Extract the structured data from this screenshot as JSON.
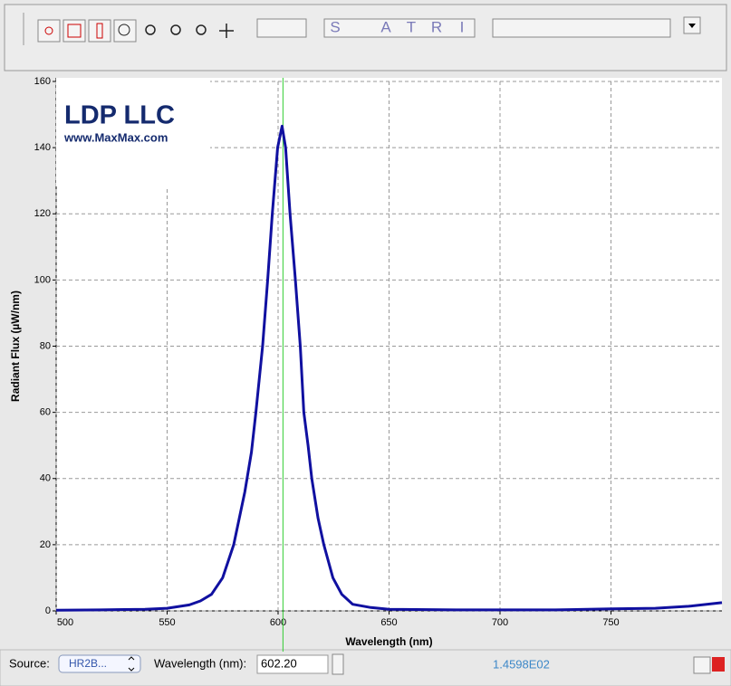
{
  "toolbar": {
    "letters": [
      "S",
      "A",
      "T",
      "R",
      "I"
    ]
  },
  "logo": {
    "title": "LDP LLC",
    "url": "www.MaxMax.com"
  },
  "chart_data": {
    "type": "line",
    "xlabel": "Wavelength (nm)",
    "ylabel": "Radiant Flux (µW/nm)",
    "x": [
      500,
      520,
      540,
      550,
      560,
      565,
      570,
      575,
      580,
      585,
      588,
      590,
      593,
      595.3,
      597.4,
      599.8,
      601.8,
      603.4,
      605.4,
      607.8,
      610,
      611.6,
      613.5,
      615.2,
      618,
      620.6,
      624.7,
      628.7,
      633.6,
      641.8,
      650,
      680,
      700,
      725,
      750,
      770,
      785,
      800
    ],
    "values": [
      0.2,
      0.3,
      0.5,
      0.8,
      1.8,
      3,
      5,
      10,
      20,
      36,
      48,
      60,
      80,
      100,
      120,
      140,
      146.5,
      140,
      120,
      100,
      80,
      60,
      50,
      40,
      28,
      20,
      10,
      5,
      2,
      1,
      0.5,
      0.3,
      0.3,
      0.3,
      0.6,
      0.8,
      1.4,
      2.5
    ],
    "color": "#1010a0",
    "xlim": [
      500,
      800
    ],
    "ylim": [
      0,
      160
    ],
    "xticks": [
      500,
      550,
      600,
      650,
      700,
      750
    ],
    "yticks": [
      0,
      20,
      40,
      60,
      80,
      100,
      120,
      140,
      160
    ],
    "grid": true,
    "cursor": {
      "value": 602.2,
      "label": "602.20",
      "color": "#33cc33"
    },
    "reading": {
      "value": 145.98,
      "label": "1.4598E02"
    }
  },
  "status_bar": {
    "source_label": "Source:",
    "source_value": "HR2B...",
    "wavelength_label": "Wavelength (nm):"
  }
}
